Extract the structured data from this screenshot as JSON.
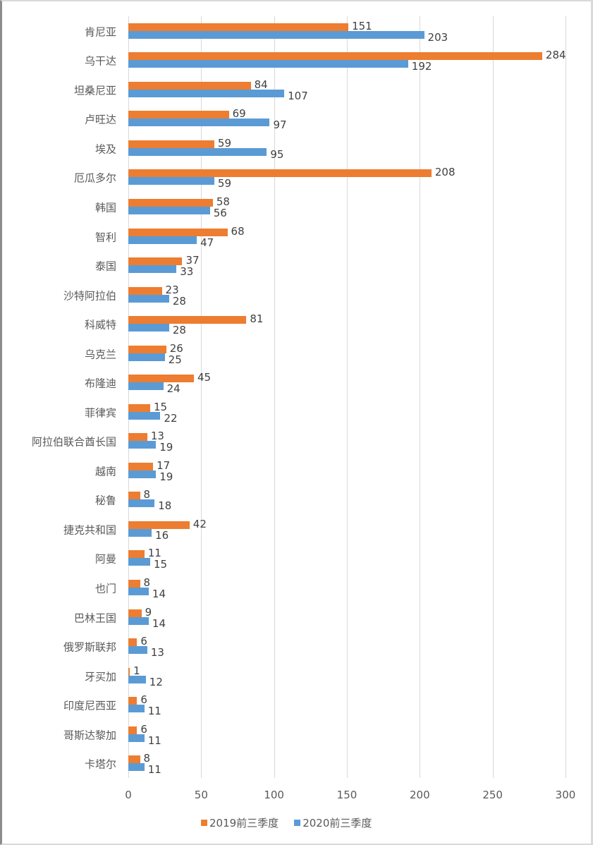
{
  "chart_data": {
    "type": "bar",
    "orientation": "horizontal",
    "title": "",
    "xlabel": "",
    "ylabel": "",
    "xlim": [
      0,
      300
    ],
    "x_ticks": [
      "0",
      "50",
      "100",
      "150",
      "200",
      "250",
      "300"
    ],
    "grid": true,
    "legend_position": "bottom",
    "categories": [
      "肯尼亚",
      "乌干达",
      "坦桑尼亚",
      "卢旺达",
      "埃及",
      "厄瓜多尔",
      "韩国",
      "智利",
      "泰国",
      "沙特阿拉伯",
      "科威特",
      "乌克兰",
      "布隆迪",
      "菲律宾",
      "阿拉伯联合酋长国",
      "越南",
      "秘鲁",
      "捷克共和国",
      "阿曼",
      "也门",
      "巴林王国",
      "俄罗斯联邦",
      "牙买加",
      "印度尼西亚",
      "哥斯达黎加",
      "卡塔尔"
    ],
    "series": [
      {
        "name": "2019前三季度",
        "color": "#ed7d31",
        "values": [
          151,
          284,
          84,
          69,
          59,
          208,
          58,
          68,
          37,
          23,
          81,
          26,
          45,
          15,
          13,
          17,
          8,
          42,
          11,
          8,
          9,
          6,
          1,
          6,
          6,
          8
        ]
      },
      {
        "name": "2020前三季度",
        "color": "#5b9bd5",
        "values": [
          203,
          192,
          107,
          97,
          95,
          59,
          56,
          47,
          33,
          28,
          28,
          25,
          24,
          22,
          19,
          19,
          18,
          16,
          15,
          14,
          14,
          13,
          12,
          11,
          11,
          11
        ]
      }
    ]
  },
  "legend": {
    "items": [
      {
        "label": "2019前三季度",
        "color": "#ed7d31"
      },
      {
        "label": "2020前三季度",
        "color": "#5b9bd5"
      }
    ]
  }
}
